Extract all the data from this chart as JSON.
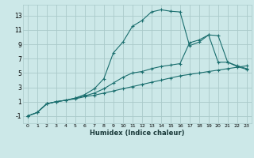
{
  "xlabel": "Humidex (Indice chaleur)",
  "bg_color": "#cce8e8",
  "grid_color": "#aacaca",
  "line_color": "#1a6e6e",
  "xlim": [
    -0.5,
    23.5
  ],
  "ylim": [
    -2,
    14.5
  ],
  "xticks": [
    0,
    1,
    2,
    3,
    4,
    5,
    6,
    7,
    8,
    9,
    10,
    11,
    12,
    13,
    14,
    15,
    16,
    17,
    18,
    19,
    20,
    21,
    22,
    23
  ],
  "yticks": [
    -1,
    1,
    3,
    5,
    7,
    9,
    11,
    13
  ],
  "line1_x": [
    0,
    1,
    2,
    3,
    4,
    5,
    6,
    7,
    8,
    9,
    10,
    11,
    12,
    13,
    14,
    15,
    16,
    17,
    18,
    19,
    20,
    21,
    22,
    23
  ],
  "line1_y": [
    -1.0,
    -0.5,
    0.7,
    1.0,
    1.2,
    1.4,
    1.7,
    1.9,
    2.2,
    2.5,
    2.8,
    3.1,
    3.4,
    3.7,
    4.0,
    4.3,
    4.6,
    4.8,
    5.0,
    5.2,
    5.4,
    5.6,
    5.8,
    6.0
  ],
  "line2_x": [
    0,
    1,
    2,
    3,
    4,
    5,
    6,
    7,
    8,
    9,
    10,
    11,
    12,
    13,
    14,
    15,
    16,
    17,
    18,
    19,
    20,
    21,
    22,
    23
  ],
  "line2_y": [
    -1.0,
    -0.5,
    0.7,
    1.0,
    1.2,
    1.5,
    1.8,
    2.2,
    2.8,
    3.6,
    4.4,
    5.0,
    5.2,
    5.6,
    5.9,
    6.1,
    6.3,
    9.2,
    9.6,
    10.3,
    10.2,
    6.5,
    5.9,
    5.5
  ],
  "line3_x": [
    0,
    1,
    2,
    3,
    4,
    5,
    6,
    7,
    8,
    9,
    10,
    11,
    12,
    13,
    14,
    15,
    16,
    17,
    18,
    19,
    20,
    21,
    22,
    23
  ],
  "line3_y": [
    -1.0,
    -0.5,
    0.7,
    1.0,
    1.2,
    1.5,
    2.0,
    2.8,
    4.2,
    7.8,
    9.3,
    11.5,
    12.3,
    13.5,
    13.8,
    13.6,
    13.5,
    8.8,
    9.3,
    10.3,
    6.5,
    6.5,
    6.0,
    5.6
  ]
}
